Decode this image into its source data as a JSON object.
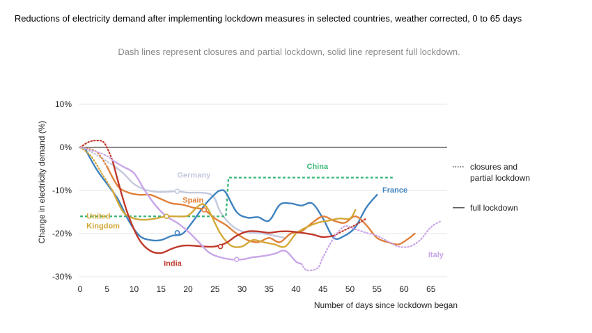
{
  "chart_data": {
    "type": "line",
    "title": "Reductions of electricity demand after implementing lockdown measures in selected countries, weather corrected, 0 to 65 days",
    "subtitle": "Dash lines represent closures and partial lockdown, solid line represent full lockdown.",
    "xlabel": "Number of days since lockdown began",
    "ylabel": "Change in electricity demand (%)",
    "xlim": [
      0,
      68
    ],
    "ylim": [
      -30,
      10
    ],
    "xticks": [
      0,
      5,
      10,
      15,
      20,
      25,
      30,
      35,
      40,
      45,
      50,
      55,
      60,
      65
    ],
    "yticks": [
      10,
      0,
      -10,
      -20,
      -30
    ],
    "ytick_labels": [
      "10%",
      "0%",
      "-10%",
      "-20%",
      "-30%"
    ],
    "legend": [
      {
        "label": "closures and partial lockdown",
        "lines": [
          "closures and",
          "partial lockdown"
        ],
        "style": "dotted"
      },
      {
        "label": "full lockdown",
        "lines": [
          "full lockdown"
        ],
        "style": "solid"
      }
    ],
    "series": [
      {
        "name": "Germany",
        "label_lines": [
          "Germany"
        ],
        "color": "#c5c9dd",
        "segments": [
          {
            "style": "dotted",
            "x": [
              0,
              2,
              4,
              6
            ],
            "y": [
              0,
              -1,
              -2.5,
              -4
            ]
          },
          {
            "style": "solid",
            "x": [
              6,
              8,
              10,
              12,
              14,
              16,
              18,
              20,
              22,
              24,
              25,
              26,
              28,
              30,
              32,
              34,
              36,
              38
            ],
            "y": [
              -4,
              -6,
              -8.5,
              -9.8,
              -10.3,
              -10.3,
              -10.2,
              -10.5,
              -10.5,
              -10.8,
              -12,
              -15,
              -18,
              -19.5,
              -19.8,
              -20,
              -20.5,
              -21
            ]
          }
        ],
        "label_at": [
          18,
          -7
        ]
      },
      {
        "name": "China",
        "label_lines": [
          "China"
        ],
        "color": "#3cb878",
        "segments": [
          {
            "style": "dashed",
            "x": [
              0,
              27,
              27.5,
              58
            ],
            "y": [
              -16,
              -16,
              -7,
              -7
            ]
          }
        ],
        "label_at": [
          42,
          -5
        ]
      },
      {
        "name": "France",
        "label_lines": [
          "France"
        ],
        "color": "#3f83c0",
        "segments": [
          {
            "style": "dotted",
            "x": [
              0,
              1
            ],
            "y": [
              0,
              -0.5
            ]
          },
          {
            "style": "solid",
            "x": [
              1,
              3,
              5,
              7,
              9,
              11,
              13,
              15,
              17,
              19,
              21,
              23,
              25,
              26,
              27,
              29,
              31,
              33,
              35,
              37,
              39,
              41,
              43,
              45,
              47,
              49,
              51,
              53,
              55
            ],
            "y": [
              -0.5,
              -5,
              -8.5,
              -12,
              -17,
              -20.5,
              -21.5,
              -21.5,
              -20.5,
              -20,
              -17,
              -13.5,
              -10.8,
              -10,
              -10.5,
              -15,
              -16.3,
              -16.2,
              -17,
              -13.3,
              -13,
              -13.5,
              -13,
              -16.5,
              -21,
              -20.5,
              -18.5,
              -14,
              -11
            ]
          }
        ],
        "label_at": [
          56,
          -10.5
        ]
      },
      {
        "name": "Spain",
        "label_lines": [
          "Spain"
        ],
        "color": "#e0803a",
        "segments": [
          {
            "style": "dotted",
            "x": [
              0,
              3,
              5
            ],
            "y": [
              0,
              -1,
              -4.5
            ]
          },
          {
            "style": "solid",
            "x": [
              5,
              7,
              9,
              11,
              13,
              15,
              17,
              19,
              21,
              23,
              25,
              27,
              29,
              31,
              33,
              35,
              37,
              39,
              41,
              43,
              45,
              47,
              49,
              51,
              53,
              55,
              57,
              59,
              61,
              62
            ],
            "y": [
              -4.5,
              -9,
              -10.5,
              -11,
              -11,
              -12,
              -13,
              -13.3,
              -14,
              -14.5,
              -16.5,
              -18,
              -20,
              -21.5,
              -22,
              -21,
              -22,
              -20,
              -19.5,
              -17.5,
              -16,
              -17,
              -17.5,
              -16,
              -18,
              -21,
              -22,
              -22.5,
              -21,
              -20
            ]
          }
        ],
        "label_at": [
          19,
          -12.8
        ]
      },
      {
        "name": "United Kingdom",
        "label_lines": [
          "United",
          "Kingdom"
        ],
        "color": "#d4a838",
        "segments": [
          {
            "style": "dotted",
            "x": [
              0,
              2,
              4,
              6
            ],
            "y": [
              0,
              -2,
              -6,
              -10
            ]
          },
          {
            "style": "solid",
            "x": [
              6,
              8,
              10,
              12,
              14,
              16,
              18,
              20,
              22,
              23,
              24,
              26,
              28,
              30,
              32,
              34,
              36,
              38,
              40,
              42,
              44,
              46,
              48,
              50,
              51
            ],
            "y": [
              -10,
              -15,
              -16.5,
              -16.8,
              -16.5,
              -16,
              -16,
              -15.8,
              -13.5,
              -13.3,
              -15,
              -20,
              -22.8,
              -23,
              -21.5,
              -22,
              -22.5,
              -23,
              -20,
              -18.5,
              -17.5,
              -17,
              -16.5,
              -16.5,
              -14.5
            ]
          }
        ],
        "label_at": [
          1.2,
          -16.5
        ]
      },
      {
        "name": "India",
        "label_lines": [
          "India"
        ],
        "color": "#c0392b",
        "segments": [
          {
            "style": "dotted",
            "x": [
              0,
              1.5,
              3,
              4.5,
              6
            ],
            "y": [
              0,
              1.2,
              1.6,
              1,
              -3
            ]
          },
          {
            "style": "solid",
            "x": [
              6,
              7.5,
              9,
              11,
              13,
              15,
              17,
              19,
              21,
              23,
              25,
              27,
              29,
              31,
              33,
              35,
              37,
              39,
              41,
              43,
              45,
              47
            ],
            "y": [
              -3,
              -10,
              -16,
              -21.5,
              -24,
              -24.5,
              -23.5,
              -22.8,
              -22.8,
              -23,
              -23,
              -22.2,
              -20.5,
              -19.5,
              -19.5,
              -19.8,
              -19.5,
              -19.5,
              -19.8,
              -20.2,
              -20.8,
              -20.5
            ]
          },
          {
            "style": "dotted",
            "x": [
              47,
              49,
              51,
              53
            ],
            "y": [
              -20.5,
              -19.2,
              -18,
              -16.5
            ]
          }
        ],
        "label_at": [
          15.5,
          -27.5
        ]
      },
      {
        "name": "Italy",
        "label_lines": [
          "Italy"
        ],
        "color": "#c9a6e8",
        "segments": [
          {
            "style": "dotted",
            "x": [
              0,
              3,
              5,
              6
            ],
            "y": [
              0,
              -1,
              -2,
              -3
            ]
          },
          {
            "style": "solid",
            "x": [
              6,
              8,
              10,
              12,
              14,
              16,
              18,
              20,
              22,
              24,
              26,
              28,
              30,
              32,
              34,
              36,
              38,
              40,
              41
            ],
            "y": [
              -3,
              -4.5,
              -6,
              -10,
              -13.5,
              -16,
              -17.5,
              -19.5,
              -22,
              -24.5,
              -25.5,
              -26,
              -26,
              -25.5,
              -25.2,
              -24.7,
              -24,
              -26.5,
              -27
            ]
          },
          {
            "style": "dotted",
            "x": [
              41,
              42,
              44,
              45,
              47,
              49,
              51,
              53,
              55,
              57,
              59,
              61,
              63,
              65,
              67
            ],
            "y": [
              -27,
              -28.5,
              -28,
              -25.5,
              -21,
              -18.3,
              -19,
              -19.8,
              -20.5,
              -21.8,
              -23,
              -23,
              -21.5,
              -18.5,
              -17
            ]
          }
        ],
        "label_at": [
          64.5,
          -25.5
        ]
      }
    ],
    "markers": [
      {
        "series": "Germany",
        "x": 18,
        "y": -10.2
      },
      {
        "series": "Spain",
        "x": 23,
        "y": -14.5
      },
      {
        "series": "United Kingdom",
        "x": 16,
        "y": -16
      },
      {
        "series": "France",
        "x": 18,
        "y": -19.8
      },
      {
        "series": "India",
        "x": 26,
        "y": -23
      },
      {
        "series": "Italy",
        "x": 29,
        "y": -26
      }
    ]
  }
}
